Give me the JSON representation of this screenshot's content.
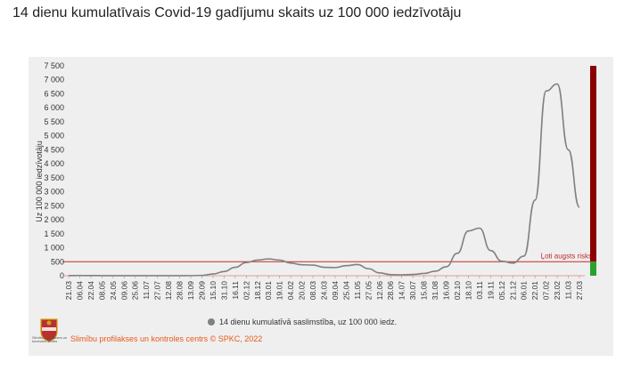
{
  "page": {
    "title": "14 dienu kumulatīvais Covid-19 gadījumu skaits uz 100 000 iedzīvotāju",
    "credit": "Slimību profilakses un kontroles centrs © SPKC, 2022",
    "logo_caption": "Slimību profilakses un kontroles centrs"
  },
  "colors": {
    "line": "#808080",
    "risk_high": "#8b0000",
    "risk_low": "#2ca02c",
    "threshold": "#c62828",
    "credit": "#e8581c"
  },
  "chart_data": {
    "type": "line",
    "title": "",
    "xlabel": "",
    "ylabel": "Uz 100 000 iedzīvotāju",
    "ylim": [
      0,
      7500
    ],
    "yticks": [
      0,
      500,
      1000,
      1500,
      2000,
      2500,
      3000,
      3500,
      4000,
      4500,
      5000,
      5500,
      6000,
      6500,
      7000,
      7500
    ],
    "ytick_labels": [
      "0",
      "500",
      "1 000",
      "1 500",
      "2 000",
      "2 500",
      "3 000",
      "3 500",
      "4 000",
      "4 500",
      "5 000",
      "5 500",
      "6 000",
      "6 500",
      "7 000",
      "7 500"
    ],
    "x_tick_labels": [
      "21.03",
      "06.04",
      "22.04",
      "08.05",
      "24.05",
      "09.06",
      "25.06",
      "11.07",
      "27.07",
      "12.08",
      "28.08",
      "13.09",
      "29.09",
      "15.10",
      "31.10",
      "16.11",
      "02.12",
      "18.12",
      "03.01",
      "19.01",
      "04.02",
      "20.02",
      "08.03",
      "24.03",
      "09.04",
      "25.04",
      "11.05",
      "27.05",
      "12.06",
      "28.06",
      "14.07",
      "30.07",
      "15.08",
      "31.08",
      "16.09",
      "02.10",
      "18.10",
      "03.11",
      "19.11",
      "05.12",
      "21.12",
      "06.01",
      "22.01",
      "07.02",
      "23.02",
      "11.03",
      "27.03"
    ],
    "legend": {
      "label": "14 dienu kumulatīvā saslimstība, uz 100 000 iedz.",
      "position": "bottom"
    },
    "grid": false,
    "threshold": {
      "value": 500,
      "label": "Ļoti augsts risks"
    },
    "series": [
      {
        "name": "14 dienu kumulatīvā saslimstība, uz 100 000 iedz.",
        "points": [
          [
            "21.03",
            3
          ],
          [
            "06.04",
            8
          ],
          [
            "22.04",
            6
          ],
          [
            "08.05",
            3
          ],
          [
            "24.05",
            2
          ],
          [
            "09.06",
            1
          ],
          [
            "25.06",
            1
          ],
          [
            "11.07",
            1
          ],
          [
            "27.07",
            2
          ],
          [
            "12.08",
            2
          ],
          [
            "28.08",
            3
          ],
          [
            "13.09",
            4
          ],
          [
            "29.09",
            12
          ],
          [
            "15.10",
            60
          ],
          [
            "31.10",
            150
          ],
          [
            "16.11",
            300
          ],
          [
            "02.12",
            470
          ],
          [
            "18.12",
            560
          ],
          [
            "03.01",
            600
          ],
          [
            "19.01",
            560
          ],
          [
            "04.02",
            450
          ],
          [
            "20.02",
            390
          ],
          [
            "08.03",
            380
          ],
          [
            "24.03",
            300
          ],
          [
            "09.04",
            290
          ],
          [
            "25.04",
            360
          ],
          [
            "11.05",
            400
          ],
          [
            "27.05",
            250
          ],
          [
            "12.06",
            100
          ],
          [
            "28.06",
            40
          ],
          [
            "14.07",
            30
          ],
          [
            "30.07",
            45
          ],
          [
            "15.08",
            80
          ],
          [
            "31.08",
            160
          ],
          [
            "16.09",
            320
          ],
          [
            "02.10",
            800
          ],
          [
            "18.10",
            1600
          ],
          [
            "03.11",
            1700
          ],
          [
            "19.11",
            900
          ],
          [
            "05.12",
            520
          ],
          [
            "21.12",
            450
          ],
          [
            "06.01",
            700
          ],
          [
            "22.01",
            2700
          ],
          [
            "07.02",
            6600
          ],
          [
            "23.02",
            6850
          ],
          [
            "11.03",
            4500
          ],
          [
            "27.03",
            2450
          ]
        ]
      }
    ],
    "risk_scale": [
      {
        "level": "high",
        "from": 500,
        "to": 7500
      },
      {
        "level": "low",
        "from": 0,
        "to": 500
      }
    ]
  }
}
